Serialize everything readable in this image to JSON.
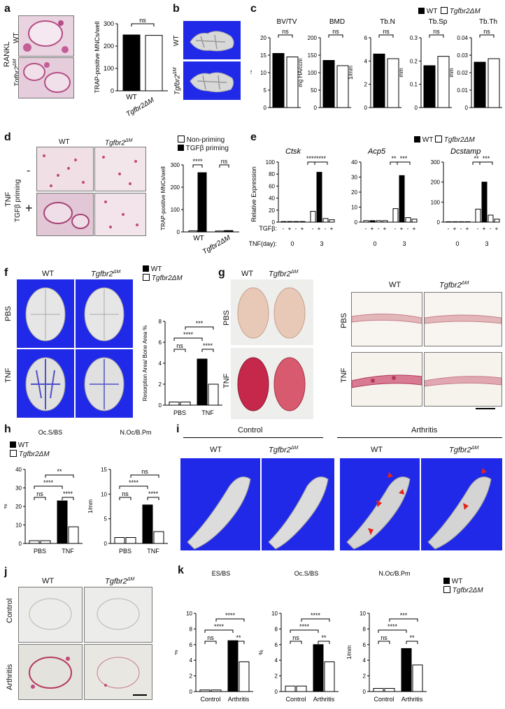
{
  "panels": {
    "a": {
      "letter": "a",
      "treatment": "RANKL",
      "row1": "WT",
      "row2": "Tgfbr2",
      "row2_sup": "ΔM",
      "chart_data": {
        "type": "bar",
        "title": "",
        "ylabel": "TRAP-positive MNCs/well",
        "categories": [
          "WT",
          "Tgfbr2ΔM"
        ],
        "values": [
          250,
          248
        ],
        "ylim": [
          0,
          300
        ],
        "yticks": [
          0,
          100,
          200,
          300
        ],
        "sig": "ns"
      }
    },
    "b": {
      "letter": "b",
      "row1": "WT",
      "row2": "Tgfbr2",
      "row2_sup": "ΔM"
    },
    "c": {
      "letter": "c",
      "legend": [
        "WT",
        "Tgfbr2ΔM"
      ],
      "chart_data": [
        {
          "type": "bar",
          "title": "BV/TV",
          "ylabel": "%",
          "categories": [
            "WT",
            "Tgfbr2ΔM"
          ],
          "values": [
            15.5,
            14.5
          ],
          "ylim": [
            0,
            20
          ],
          "yticks": [
            0,
            5,
            10,
            15,
            20
          ],
          "sig": "ns"
        },
        {
          "type": "bar",
          "title": "BMD",
          "ylabel": "mg HA/ccm",
          "categories": [
            "WT",
            "Tgfbr2ΔM"
          ],
          "values": [
            135,
            120
          ],
          "ylim": [
            0,
            200
          ],
          "yticks": [
            0,
            50,
            100,
            150,
            200
          ],
          "sig": "ns"
        },
        {
          "type": "bar",
          "title": "Tb.N",
          "ylabel": "1/mm",
          "categories": [
            "WT",
            "Tgfbr2ΔM"
          ],
          "values": [
            4.6,
            4.2
          ],
          "ylim": [
            0,
            6
          ],
          "yticks": [
            0,
            2,
            4,
            6
          ],
          "sig": "ns"
        },
        {
          "type": "bar",
          "title": "Tb.Sp",
          "ylabel": "mm",
          "categories": [
            "WT",
            "Tgfbr2ΔM"
          ],
          "values": [
            0.18,
            0.22
          ],
          "ylim": [
            0,
            0.3
          ],
          "yticks": [
            0.0,
            0.1,
            0.2,
            0.3
          ],
          "sig": "ns"
        },
        {
          "type": "bar",
          "title": "Tb.Th",
          "ylabel": "mm",
          "categories": [
            "WT",
            "Tgfbr2ΔM"
          ],
          "values": [
            0.026,
            0.028
          ],
          "ylim": [
            0,
            0.04
          ],
          "yticks": [
            0.0,
            0.01,
            0.02,
            0.03,
            0.04
          ],
          "sig": "ns"
        }
      ]
    },
    "d": {
      "letter": "d",
      "treatment": "TNF",
      "priming": "TGFβ priming",
      "minus": "-",
      "plus": "+",
      "col1": "WT",
      "col2": "Tgfbr2",
      "col2_sup": "ΔM",
      "legend": [
        "Non-priming",
        "TGFβ priming"
      ],
      "chart_data": {
        "type": "bar",
        "ylabel": "TRAP-positive MNCs/well",
        "categories": [
          "WT",
          "Tgfbr2ΔM"
        ],
        "series": [
          {
            "name": "Non-priming",
            "values": [
              5,
              4
            ]
          },
          {
            "name": "TGFβ priming",
            "values": [
              265,
              6
            ]
          }
        ],
        "ylim": [
          0,
          300
        ],
        "yticks": [
          0,
          100,
          200,
          300
        ],
        "sig": [
          "****",
          "ns"
        ]
      }
    },
    "e": {
      "letter": "e",
      "legend": [
        "WT",
        "Tgfbr2ΔM"
      ],
      "ylabel": "Relative Expression",
      "row_tgf": "TGFβ:",
      "row_tnf": "TNF(day):",
      "day0": "0",
      "day3": "3",
      "chart_data": [
        {
          "type": "bar",
          "title": "Ctsk",
          "ylim": [
            0,
            100
          ],
          "yticks": [
            0,
            20,
            40,
            60,
            80,
            100
          ],
          "values": [
            1,
            1,
            1,
            1,
            18,
            83,
            6,
            4
          ],
          "sig": [
            "****",
            "****"
          ]
        },
        {
          "type": "bar",
          "title": "Acp5",
          "ylim": [
            0,
            40
          ],
          "yticks": [
            0,
            10,
            20,
            30,
            40
          ],
          "values": [
            1,
            1,
            1,
            1,
            9,
            31,
            3,
            2
          ],
          "sig": [
            "**",
            "***"
          ]
        },
        {
          "type": "bar",
          "title": "Dcstamp",
          "ylim": [
            0,
            300
          ],
          "yticks": [
            0,
            100,
            200,
            300
          ],
          "values": [
            2,
            2,
            2,
            2,
            65,
            200,
            35,
            15
          ],
          "sig": [
            "**",
            "***"
          ]
        }
      ]
    },
    "f": {
      "letter": "f",
      "col1": "WT",
      "col2": "Tgfbr2",
      "col2_sup": "ΔM",
      "row1": "PBS",
      "row2": "TNF",
      "legend": [
        "WT",
        "Tgfbr2ΔM"
      ],
      "chart_data": {
        "type": "bar",
        "ylabel": "Resorption Area/ Bone Area %",
        "categories": [
          "PBS",
          "TNF"
        ],
        "series": [
          {
            "name": "WT",
            "values": [
              0.3,
              4.4
            ]
          },
          {
            "name": "Tgfbr2ΔM",
            "values": [
              0.3,
              2.0
            ]
          }
        ],
        "ylim": [
          0,
          8
        ],
        "yticks": [
          0,
          2,
          4,
          6,
          8
        ],
        "sig": [
          "ns",
          "****",
          "***",
          "****"
        ]
      }
    },
    "g": {
      "letter": "g",
      "col1": "WT",
      "col2": "Tgfbr2",
      "col2_sup": "ΔM",
      "row1": "PBS",
      "row2": "TNF"
    },
    "h": {
      "letter": "h",
      "legend": [
        "WT",
        "Tgfbr2ΔM"
      ],
      "chart_data": [
        {
          "type": "bar",
          "title": "Oc.S/BS",
          "ylabel": "%",
          "categories": [
            "PBS",
            "TNF"
          ],
          "series": [
            {
              "name": "WT",
              "values": [
                1.5,
                23
              ]
            },
            {
              "name": "Tgfbr2ΔM",
              "values": [
                1.5,
                9
              ]
            }
          ],
          "ylim": [
            0,
            40
          ],
          "yticks": [
            0,
            10,
            20,
            30,
            40
          ],
          "sig": [
            "ns",
            "****",
            "**",
            "****"
          ]
        },
        {
          "type": "bar",
          "title": "N.Oc/B.Pm",
          "ylabel": "1/mm",
          "categories": [
            "PBS",
            "TNF"
          ],
          "series": [
            {
              "name": "WT",
              "values": [
                1.2,
                7.8
              ]
            },
            {
              "name": "Tgfbr2ΔM",
              "values": [
                1.2,
                2.4
              ]
            }
          ],
          "ylim": [
            0,
            15
          ],
          "yticks": [
            0,
            5,
            10,
            15
          ],
          "sig": [
            "ns",
            "****",
            "ns",
            "****"
          ]
        }
      ]
    },
    "i": {
      "letter": "i",
      "group1": "Control",
      "group2": "Arthritis",
      "col1": "WT",
      "col2": "Tgfbr2",
      "col2_sup": "ΔM"
    },
    "j": {
      "letter": "j",
      "col1": "WT",
      "col2": "Tgfbr2",
      "col2_sup": "ΔM",
      "row1": "Control",
      "row2": "Arthritis"
    },
    "k": {
      "letter": "k",
      "legend": [
        "WT",
        "Tgfbr2ΔM"
      ],
      "chart_data": [
        {
          "type": "bar",
          "title": "ES/BS",
          "ylabel": "%",
          "categories": [
            "Control",
            "Arthritis"
          ],
          "series": [
            {
              "name": "WT",
              "values": [
                0.2,
                6.5
              ]
            },
            {
              "name": "Tgfbr2ΔM",
              "values": [
                0.2,
                3.8
              ]
            }
          ],
          "ylim": [
            0,
            10
          ],
          "yticks": [
            0,
            2,
            4,
            6,
            8,
            10
          ],
          "sig": [
            "ns",
            "****",
            "****",
            "**"
          ]
        },
        {
          "type": "bar",
          "title": "Oc.S/BS",
          "ylabel": "%",
          "categories": [
            "Control",
            "Arthritis"
          ],
          "series": [
            {
              "name": "WT",
              "values": [
                0.7,
                6
              ]
            },
            {
              "name": "Tgfbr2ΔM",
              "values": [
                0.7,
                3.8
              ]
            }
          ],
          "ylim": [
            0,
            10
          ],
          "yticks": [
            0,
            2,
            4,
            6,
            8,
            10
          ],
          "sig": [
            "ns",
            "****",
            "****",
            "**"
          ]
        },
        {
          "type": "bar",
          "title": "N.Oc/B.Pm",
          "ylabel": "1/mm",
          "categories": [
            "Control",
            "Arthritis"
          ],
          "series": [
            {
              "name": "WT",
              "values": [
                0.4,
                5.5
              ]
            },
            {
              "name": "Tgfbr2ΔM",
              "values": [
                0.4,
                3.4
              ]
            }
          ],
          "ylim": [
            0,
            10
          ],
          "yticks": [
            0,
            2,
            4,
            6,
            8,
            10
          ],
          "sig": [
            "ns",
            "****",
            "***",
            "**"
          ]
        }
      ]
    }
  }
}
